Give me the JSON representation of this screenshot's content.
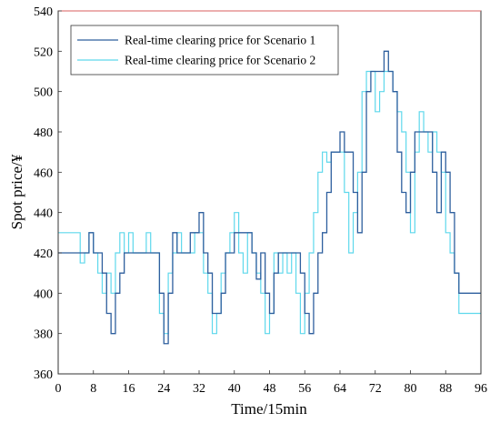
{
  "chart_data": {
    "type": "line",
    "title": "",
    "xlabel": "Time/15min",
    "ylabel": "Spot price/¥",
    "xlim": [
      0,
      96
    ],
    "ylim": [
      360,
      540
    ],
    "xticks": [
      0,
      8,
      16,
      24,
      32,
      40,
      48,
      56,
      64,
      72,
      80,
      88,
      96
    ],
    "yticks": [
      360,
      380,
      400,
      420,
      440,
      460,
      480,
      500,
      520,
      540
    ],
    "grid": false,
    "legend_position": "top-left",
    "step": true,
    "series": [
      {
        "name": "Real-time clearing price for Scenario 1",
        "color": "#2e5f9e",
        "x": [
          0,
          1,
          2,
          3,
          4,
          5,
          6,
          7,
          8,
          9,
          10,
          11,
          12,
          13,
          14,
          15,
          16,
          17,
          18,
          19,
          20,
          21,
          22,
          23,
          24,
          25,
          26,
          27,
          28,
          29,
          30,
          31,
          32,
          33,
          34,
          35,
          36,
          37,
          38,
          39,
          40,
          41,
          42,
          43,
          44,
          45,
          46,
          47,
          48,
          49,
          50,
          51,
          52,
          53,
          54,
          55,
          56,
          57,
          58,
          59,
          60,
          61,
          62,
          63,
          64,
          65,
          66,
          67,
          68,
          69,
          70,
          71,
          72,
          73,
          74,
          75,
          76,
          77,
          78,
          79,
          80,
          81,
          82,
          83,
          84,
          85,
          86,
          87,
          88,
          89,
          90,
          91,
          92,
          93,
          94,
          95
        ],
        "values": [
          420,
          420,
          420,
          420,
          420,
          420,
          420,
          430,
          420,
          420,
          410,
          390,
          380,
          400,
          410,
          420,
          420,
          420,
          420,
          420,
          420,
          420,
          420,
          400,
          375,
          400,
          430,
          420,
          420,
          420,
          430,
          430,
          440,
          420,
          410,
          390,
          390,
          400,
          420,
          420,
          430,
          430,
          430,
          430,
          420,
          407,
          420,
          400,
          390,
          410,
          420,
          420,
          420,
          420,
          420,
          410,
          390,
          380,
          400,
          420,
          430,
          450,
          470,
          470,
          480,
          470,
          470,
          450,
          430,
          460,
          500,
          510,
          510,
          510,
          520,
          510,
          500,
          470,
          450,
          440,
          460,
          480,
          480,
          480,
          480,
          460,
          440,
          470,
          460,
          440,
          410,
          400,
          400,
          400,
          400,
          400
        ]
      },
      {
        "name": "Real-time clearing price for Scenario 2",
        "color": "#5ed8ec",
        "x": [
          0,
          1,
          2,
          3,
          4,
          5,
          6,
          7,
          8,
          9,
          10,
          11,
          12,
          13,
          14,
          15,
          16,
          17,
          18,
          19,
          20,
          21,
          22,
          23,
          24,
          25,
          26,
          27,
          28,
          29,
          30,
          31,
          32,
          33,
          34,
          35,
          36,
          37,
          38,
          39,
          40,
          41,
          42,
          43,
          44,
          45,
          46,
          47,
          48,
          49,
          50,
          51,
          52,
          53,
          54,
          55,
          56,
          57,
          58,
          59,
          60,
          61,
          62,
          63,
          64,
          65,
          66,
          67,
          68,
          69,
          70,
          71,
          72,
          73,
          74,
          75,
          76,
          77,
          78,
          79,
          80,
          81,
          82,
          83,
          84,
          85,
          86,
          87,
          88,
          89,
          90,
          91,
          92,
          93,
          94,
          95
        ],
        "values": [
          430,
          430,
          430,
          430,
          430,
          415,
          420,
          430,
          420,
          410,
          400,
          410,
          400,
          420,
          430,
          420,
          430,
          420,
          420,
          420,
          430,
          420,
          420,
          390,
          380,
          410,
          420,
          430,
          420,
          420,
          420,
          430,
          430,
          410,
          400,
          380,
          390,
          410,
          420,
          430,
          440,
          420,
          410,
          430,
          420,
          410,
          400,
          380,
          390,
          420,
          410,
          420,
          410,
          420,
          400,
          380,
          400,
          420,
          440,
          460,
          470,
          465,
          470,
          470,
          470,
          450,
          420,
          440,
          460,
          500,
          510,
          510,
          490,
          500,
          510,
          510,
          500,
          490,
          480,
          460,
          430,
          470,
          490,
          480,
          470,
          480,
          470,
          460,
          430,
          420,
          410,
          390,
          390,
          390,
          390,
          390
        ]
      }
    ]
  }
}
